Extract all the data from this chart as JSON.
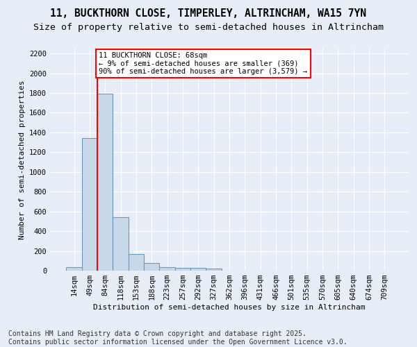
{
  "title1": "11, BUCKTHORN CLOSE, TIMPERLEY, ALTRINCHAM, WA15 7YN",
  "title2": "Size of property relative to semi-detached houses in Altrincham",
  "xlabel": "Distribution of semi-detached houses by size in Altrincham",
  "ylabel": "Number of semi-detached properties",
  "footer1": "Contains HM Land Registry data © Crown copyright and database right 2025.",
  "footer2": "Contains public sector information licensed under the Open Government Licence v3.0.",
  "bin_labels": [
    "14sqm",
    "49sqm",
    "84sqm",
    "118sqm",
    "153sqm",
    "188sqm",
    "223sqm",
    "257sqm",
    "292sqm",
    "327sqm",
    "362sqm",
    "396sqm",
    "431sqm",
    "466sqm",
    "501sqm",
    "535sqm",
    "570sqm",
    "605sqm",
    "640sqm",
    "674sqm",
    "709sqm"
  ],
  "bar_values": [
    35,
    1340,
    1790,
    540,
    170,
    80,
    35,
    25,
    25,
    20,
    0,
    0,
    0,
    0,
    0,
    0,
    0,
    0,
    0,
    0,
    0
  ],
  "bar_color": "#c8d8eb",
  "bar_edge_color": "#6699bb",
  "property_line_color": "red",
  "annotation_text": "11 BUCKTHORN CLOSE: 68sqm\n← 9% of semi-detached houses are smaller (369)\n90% of semi-detached houses are larger (3,579) →",
  "annotation_box_color": "white",
  "annotation_box_edge_color": "red",
  "ylim": [
    0,
    2250
  ],
  "yticks": [
    0,
    200,
    400,
    600,
    800,
    1000,
    1200,
    1400,
    1600,
    1800,
    2000,
    2200
  ],
  "background_color": "#e8eef8",
  "grid_color": "#ffffff",
  "title1_fontsize": 10.5,
  "title2_fontsize": 9.5,
  "axis_fontsize": 8,
  "tick_fontsize": 7.5,
  "footer_fontsize": 7
}
